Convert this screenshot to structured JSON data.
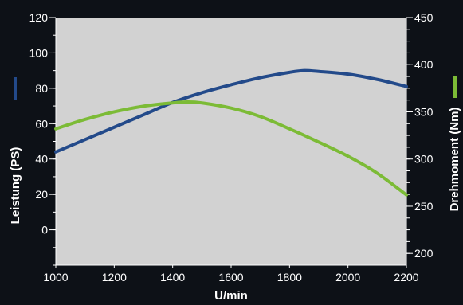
{
  "chart_data": {
    "type": "line",
    "xlabel": "U/min",
    "y_left_label": "Leistung (PS)",
    "y_right_label": "Drehmoment (Nm)",
    "xlim": [
      1000,
      2200
    ],
    "ylim_left": [
      -20,
      120
    ],
    "ylim_right": [
      187.5,
      450
    ],
    "x_ticks": [
      1000,
      1200,
      1400,
      1600,
      1800,
      2000,
      2200
    ],
    "y_left_ticks": [
      0,
      20,
      40,
      60,
      80,
      100,
      120
    ],
    "y_right_ticks": [
      200,
      250,
      300,
      350,
      400,
      450
    ],
    "grid": false,
    "colors": {
      "plot_background": "#d2d2d2",
      "page_background": "#0d1117",
      "leistung": "#234a8a",
      "drehmoment": "#7cbb36",
      "text": "#ffffff"
    },
    "series": [
      {
        "name": "Leistung (PS)",
        "axis": "left",
        "color": "#234a8a",
        "x": [
          1000,
          1100,
          1200,
          1300,
          1400,
          1500,
          1600,
          1700,
          1800,
          1850,
          1900,
          2000,
          2100,
          2200
        ],
        "y": [
          44,
          51,
          58,
          65,
          72,
          77.5,
          82,
          86,
          89,
          90,
          89.5,
          88,
          85,
          81
        ]
      },
      {
        "name": "Drehmoment (Nm)",
        "axis": "right",
        "color": "#7cbb36",
        "x": [
          1000,
          1100,
          1200,
          1300,
          1400,
          1450,
          1500,
          1600,
          1700,
          1800,
          1900,
          2000,
          2100,
          2200
        ],
        "y": [
          332,
          342,
          350,
          356,
          359.5,
          360.5,
          359.5,
          354,
          345,
          332,
          318,
          303,
          285,
          262
        ]
      }
    ]
  }
}
